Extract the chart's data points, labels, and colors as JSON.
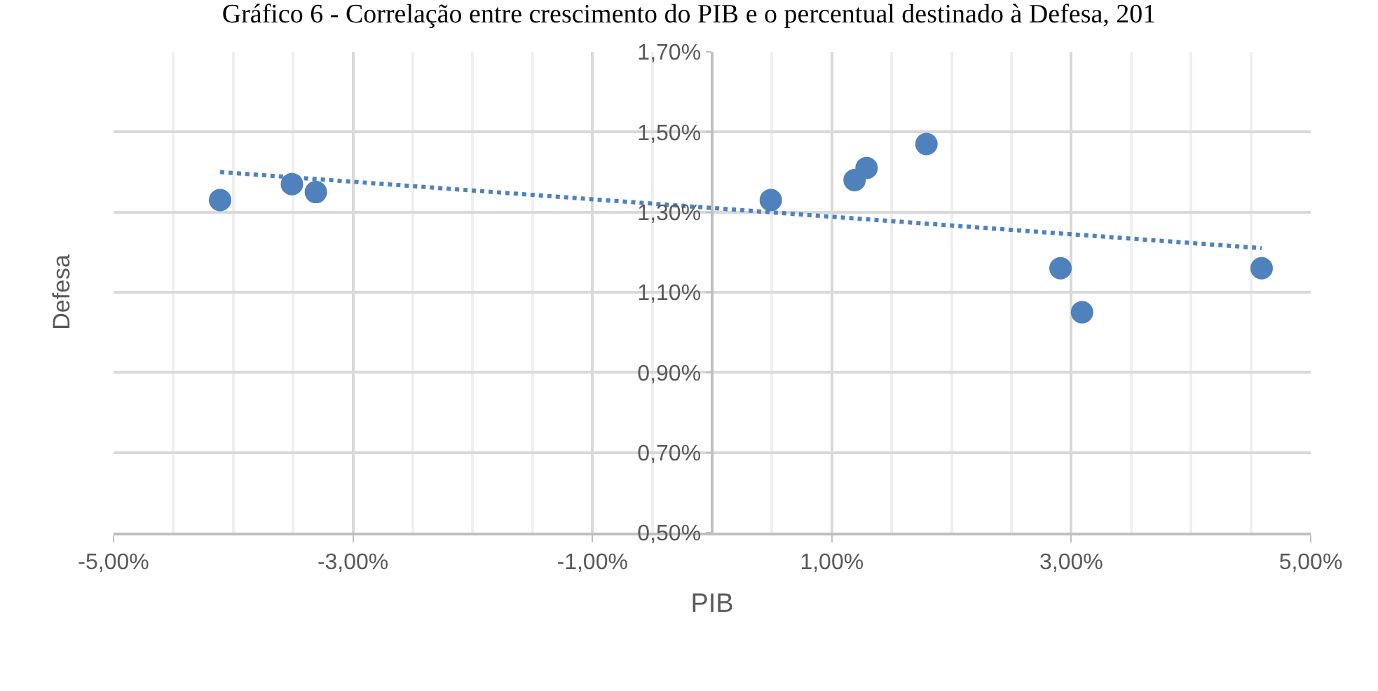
{
  "chart_data": {
    "type": "scatter",
    "title": "Gráfico 6 - Correlação entre crescimento do PIB e o percentual destinado à Defesa, 201",
    "xlabel": "PIB",
    "ylabel": "Defesa",
    "x": [
      -4.11,
      -3.51,
      -3.31,
      0.49,
      1.19,
      1.29,
      1.79,
      2.91,
      3.09,
      4.59
    ],
    "series": [
      {
        "color": "#4f81bd",
        "values": [
          1.33,
          1.37,
          1.35,
          1.33,
          1.38,
          1.41,
          1.47,
          1.16,
          1.05,
          1.16
        ]
      },
      {
        "type": "line",
        "color": "#4f81bd",
        "line_style": "dotted",
        "marker": "none",
        "x": [
          -4.11,
          4.59
        ],
        "values": [
          1.4,
          1.21
        ]
      }
    ],
    "xlim": [
      -5,
      5
    ],
    "ylim": [
      0.5,
      1.7
    ],
    "xticks": [
      {
        "value": -5,
        "label": "-5,00%"
      },
      {
        "value": -3,
        "label": "-3,00%"
      },
      {
        "value": -1,
        "label": "-1,00%"
      },
      {
        "value": 1,
        "label": "1,00%"
      },
      {
        "value": 3,
        "label": "3,00%"
      },
      {
        "value": 5,
        "label": "5,00%"
      }
    ],
    "yticks": [
      {
        "value": 0.5,
        "label": "0,50%"
      },
      {
        "value": 0.7,
        "label": "0,70%"
      },
      {
        "value": 0.9,
        "label": "0,90%"
      },
      {
        "value": 1.1,
        "label": "1,10%"
      },
      {
        "value": 1.3,
        "label": "1,30%"
      },
      {
        "value": 1.5,
        "label": "1,50%"
      },
      {
        "value": 1.7,
        "label": "1,70%"
      }
    ],
    "grid": true,
    "marker": "circle",
    "legend": false
  }
}
